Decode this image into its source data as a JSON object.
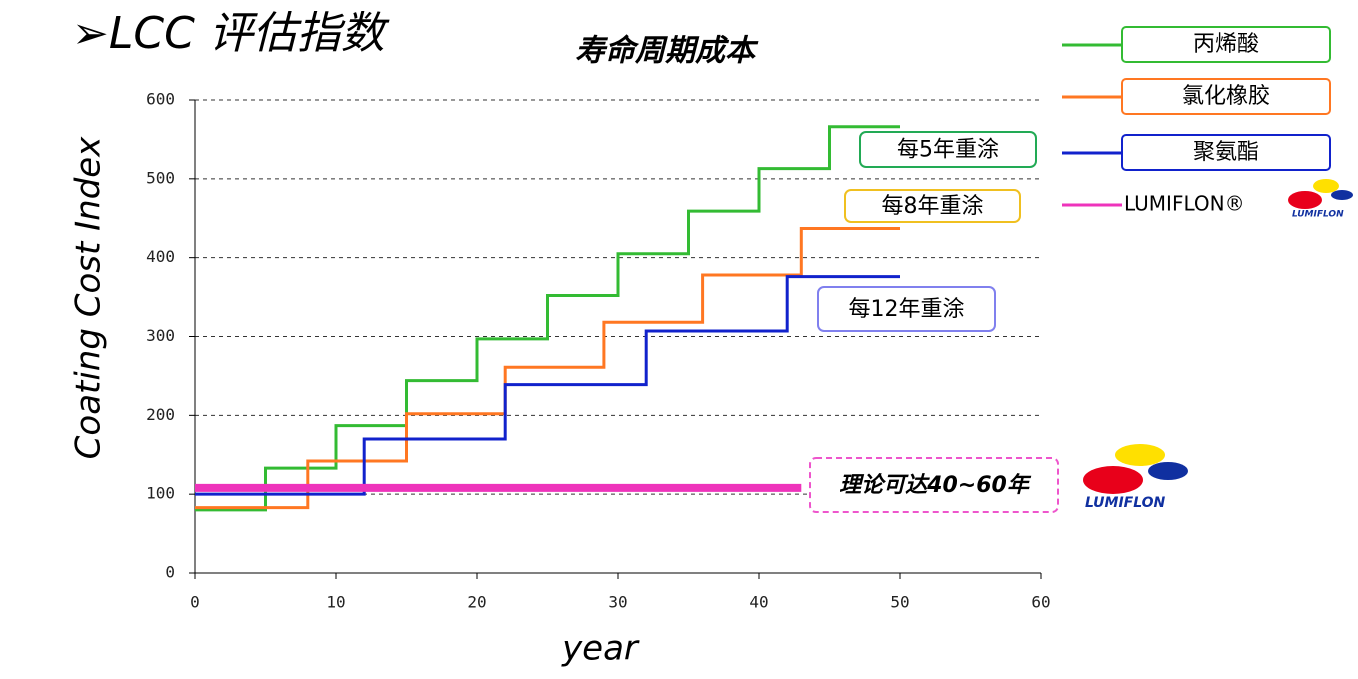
{
  "heading": "➢LCC 评估指数",
  "logo_text": "LUMIFLON",
  "chart_data": {
    "type": "step",
    "title": "寿命周期成本",
    "x_label": "year",
    "y_label": "Coating Cost Index",
    "xlim": [
      0,
      60
    ],
    "xticks": [
      0,
      10,
      20,
      30,
      40,
      50,
      60
    ],
    "ylim": [
      0,
      600
    ],
    "yticks": [
      0,
      100,
      200,
      300,
      400,
      500,
      600
    ],
    "grid": true,
    "series": [
      {
        "name": "丙烯酸",
        "color": "#33bb33",
        "x": [
          0,
          5,
          10,
          15,
          20,
          25,
          30,
          35,
          40,
          45,
          50
        ],
        "values": [
          80,
          133,
          187,
          244,
          297,
          352,
          405,
          459,
          513,
          566,
          566
        ]
      },
      {
        "name": "氯化橡胶",
        "color": "#ff7722",
        "x": [
          0,
          8,
          15,
          22,
          29,
          36,
          43,
          50
        ],
        "values": [
          83,
          142,
          202,
          261,
          318,
          378,
          437,
          437
        ]
      },
      {
        "name": "聚氨酯",
        "color": "#1122cc",
        "x": [
          0,
          12,
          22,
          32,
          42,
          50
        ],
        "values": [
          100,
          170,
          239,
          307,
          376,
          376
        ]
      },
      {
        "name": "LUMIFLON®",
        "color": "#ee33bb",
        "x": [
          0,
          43
        ],
        "values": [
          108,
          108
        ]
      }
    ],
    "annotations": [
      {
        "text": "每5年重涂",
        "color": "#22aa55"
      },
      {
        "text": "每8年重涂",
        "color": "#f0c020"
      },
      {
        "text": "每12年重涂",
        "color": "#8080ee"
      },
      {
        "text": "理论可达40~60年",
        "color": "#ee55cc"
      }
    ]
  }
}
